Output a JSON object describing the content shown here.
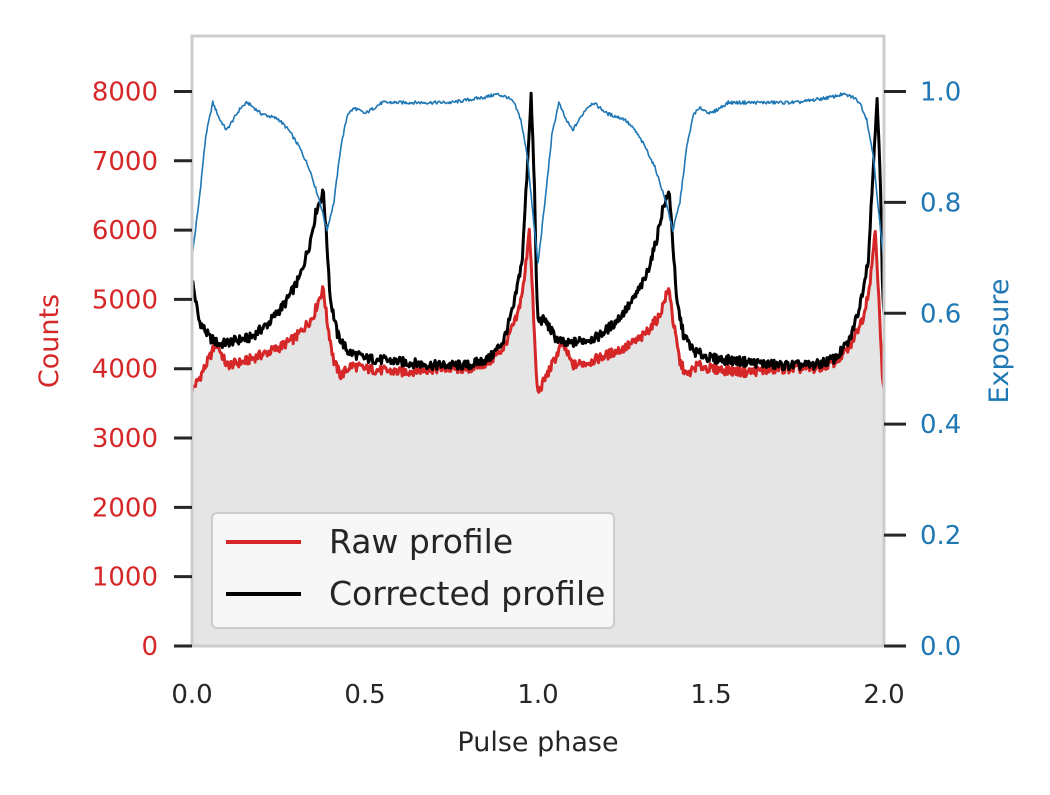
{
  "chart_data": {
    "type": "line",
    "title": "",
    "xlabel": "Pulse phase",
    "ylabel_left": "Counts",
    "ylabel_right": "Exposure",
    "xlim": [
      0.0,
      2.0
    ],
    "ylim_left": [
      0,
      8800
    ],
    "ylim_right": [
      0.0,
      1.1
    ],
    "xticks": [
      0.0,
      0.5,
      1.0,
      1.5,
      2.0
    ],
    "xtick_labels": [
      "0.0",
      "0.5",
      "1.0",
      "1.5",
      "2.0"
    ],
    "yticks_left": [
      0,
      1000,
      2000,
      3000,
      4000,
      5000,
      6000,
      7000,
      8000
    ],
    "ytick_labels_left": [
      "0",
      "1000",
      "2000",
      "3000",
      "4000",
      "5000",
      "6000",
      "7000",
      "8000"
    ],
    "yticks_right": [
      0.0,
      0.2,
      0.4,
      0.6,
      0.8,
      1.0
    ],
    "ytick_labels_right": [
      "0.0",
      "0.2",
      "0.4",
      "0.6",
      "0.8",
      "1.0"
    ],
    "grid": false,
    "legend_position": "lower-left",
    "legend": [
      "Raw profile",
      "Corrected profile"
    ],
    "series": [
      {
        "name": "Raw profile",
        "axis": "left",
        "color": "#d62728",
        "x": [
          0.0,
          0.02,
          0.05,
          0.07,
          0.1,
          0.15,
          0.2,
          0.25,
          0.3,
          0.35,
          0.37,
          0.38,
          0.39,
          0.41,
          0.43,
          0.46,
          0.5,
          0.6,
          0.7,
          0.8,
          0.86,
          0.9,
          0.94,
          0.96,
          0.975,
          0.985,
          0.995,
          1.0
        ],
        "values": [
          3700,
          3850,
          4150,
          4380,
          4050,
          4100,
          4200,
          4300,
          4450,
          4750,
          5050,
          5150,
          4700,
          4100,
          3900,
          4050,
          4000,
          3950,
          4000,
          4000,
          4100,
          4300,
          4750,
          5250,
          6050,
          5000,
          3900,
          3650
        ]
      },
      {
        "name": "Corrected profile",
        "axis": "left",
        "color": "#000000",
        "x": [
          0.0,
          0.02,
          0.05,
          0.08,
          0.12,
          0.17,
          0.22,
          0.27,
          0.31,
          0.34,
          0.36,
          0.38,
          0.39,
          0.4,
          0.42,
          0.45,
          0.5,
          0.6,
          0.7,
          0.8,
          0.86,
          0.9,
          0.93,
          0.955,
          0.97,
          0.98,
          0.99,
          0.995,
          1.0
        ],
        "values": [
          5300,
          4700,
          4450,
          4350,
          4400,
          4450,
          4650,
          4950,
          5300,
          5800,
          6300,
          6550,
          5800,
          5000,
          4500,
          4250,
          4150,
          4100,
          4050,
          4050,
          4150,
          4400,
          4900,
          5600,
          7000,
          7950,
          6600,
          5300,
          4700
        ]
      },
      {
        "name": "Exposure",
        "axis": "right",
        "color": "#1f77b4",
        "x": [
          0.0,
          0.02,
          0.04,
          0.06,
          0.08,
          0.1,
          0.12,
          0.14,
          0.16,
          0.2,
          0.25,
          0.28,
          0.31,
          0.34,
          0.37,
          0.39,
          0.41,
          0.43,
          0.45,
          0.47,
          0.5,
          0.55,
          0.65,
          0.75,
          0.85,
          0.88,
          0.91,
          0.93,
          0.95,
          0.97,
          0.985,
          1.0
        ],
        "values": [
          0.7,
          0.8,
          0.92,
          0.98,
          0.95,
          0.93,
          0.95,
          0.97,
          0.98,
          0.96,
          0.95,
          0.93,
          0.9,
          0.86,
          0.8,
          0.75,
          0.8,
          0.9,
          0.96,
          0.97,
          0.96,
          0.98,
          0.98,
          0.98,
          0.99,
          0.995,
          0.99,
          0.98,
          0.95,
          0.88,
          0.78,
          0.69
        ]
      }
    ]
  }
}
